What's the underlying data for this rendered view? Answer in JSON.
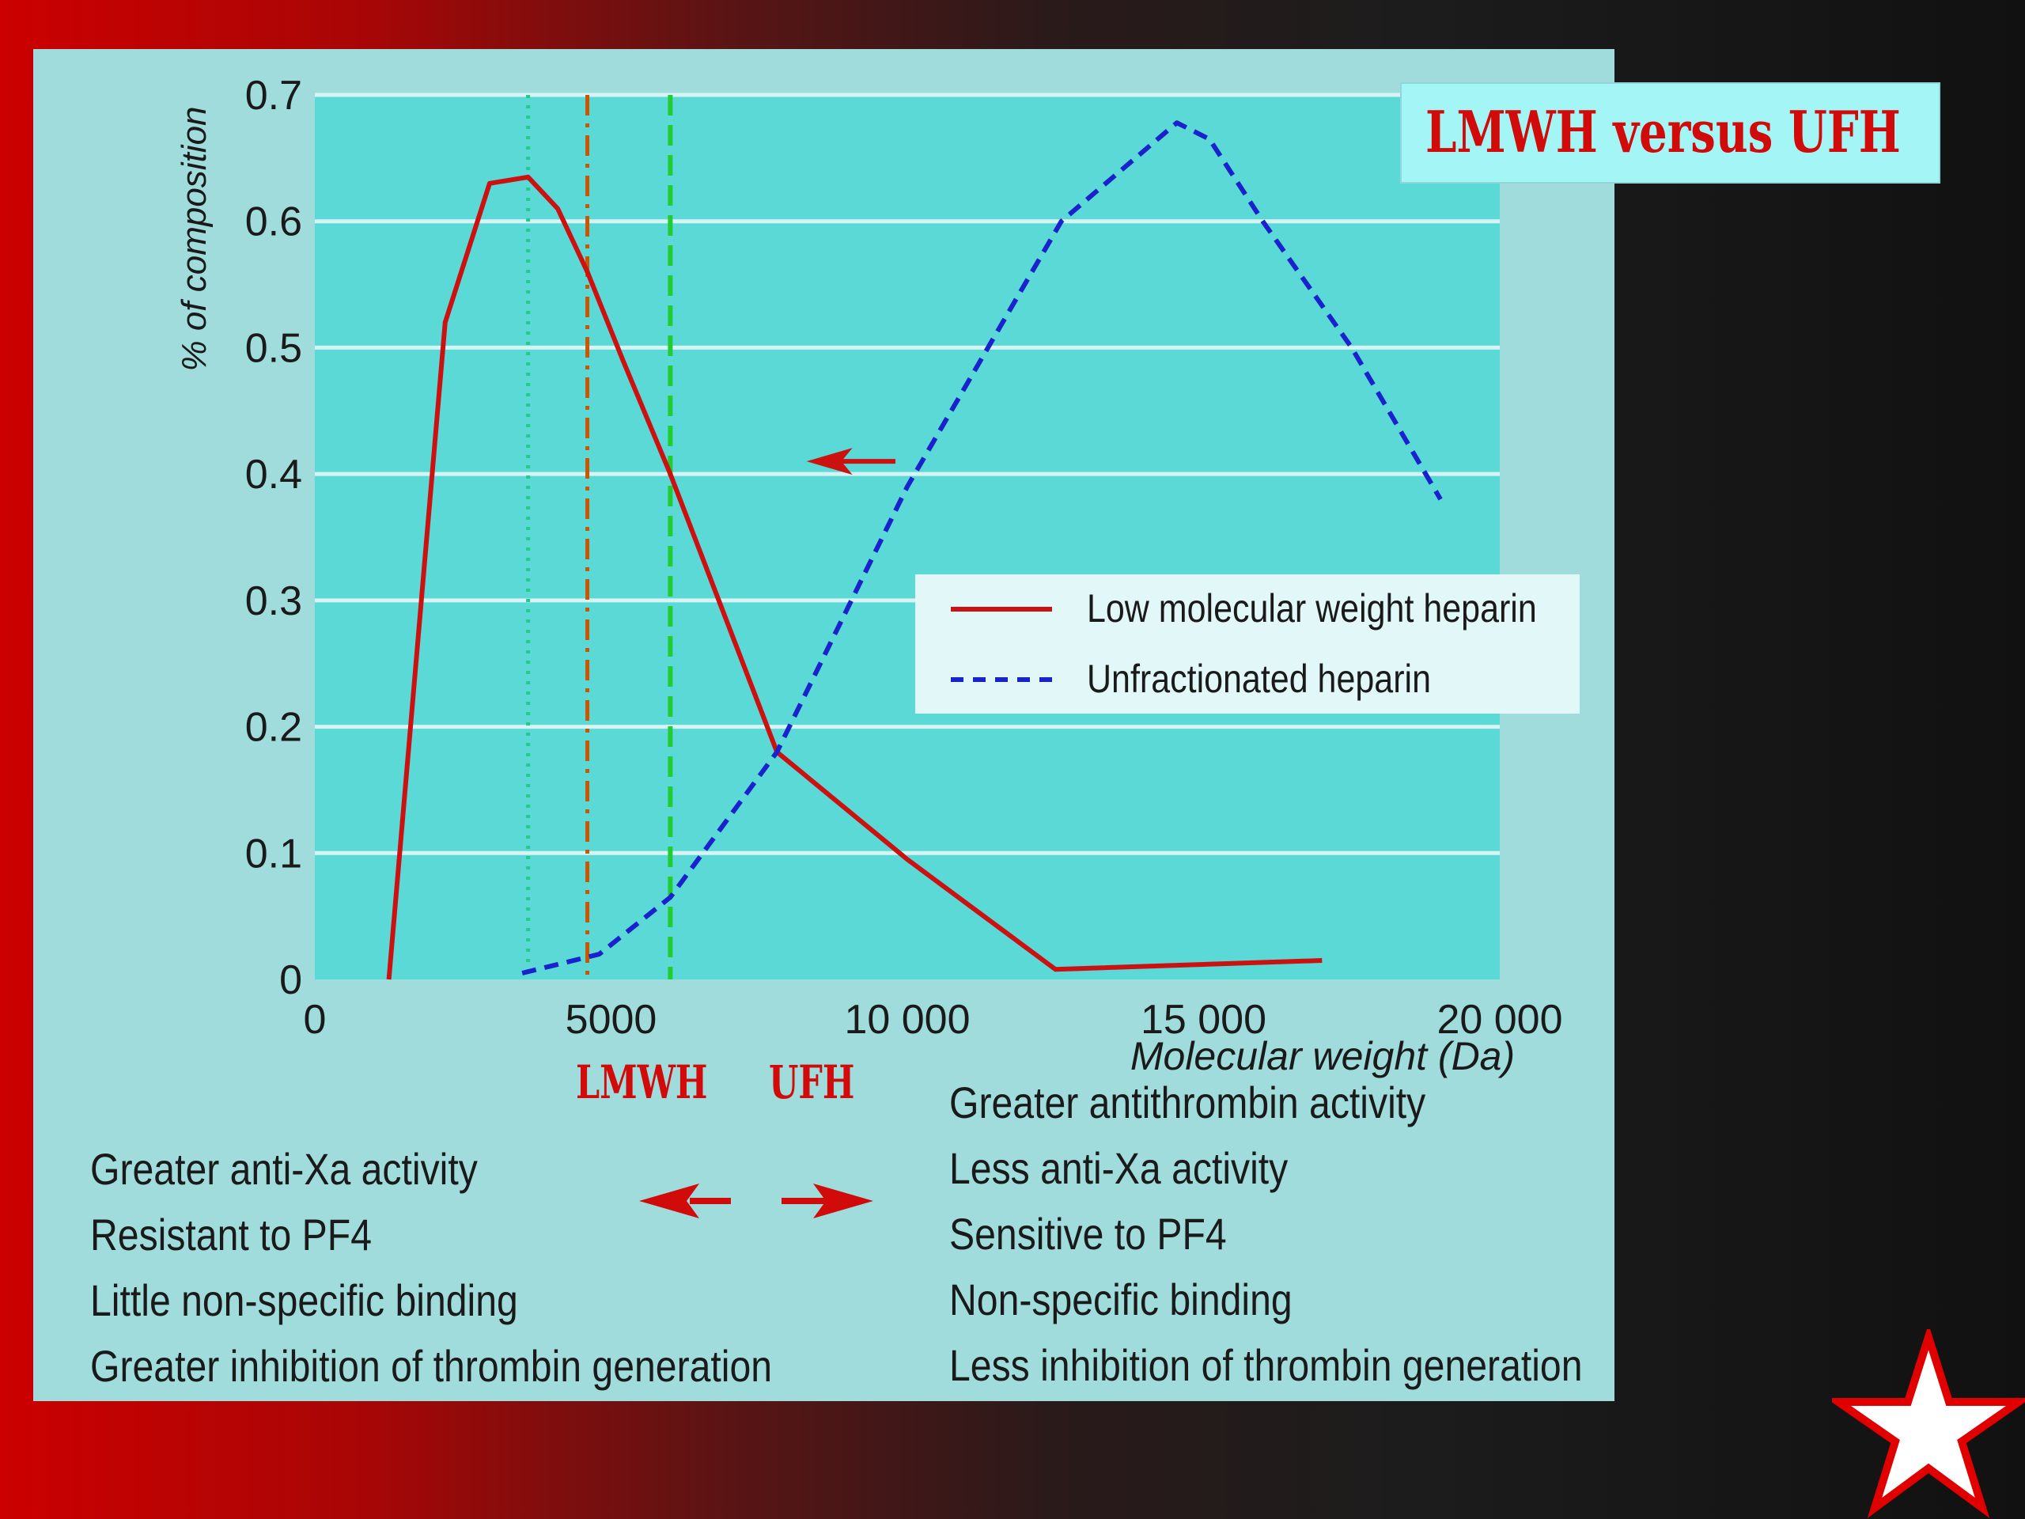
{
  "title": "LMWH versus UFH",
  "colors": {
    "lmwh": "#cc1111",
    "ufh": "#1a22cc",
    "marker_dotted": "#22cc88",
    "marker_dashdot": "#cc5500",
    "marker_dashed": "#22cc33",
    "plot_bg": "#5ad9d6",
    "panel_bg": "#a0dcdb",
    "accent_red": "#d10a0a"
  },
  "chart_data": {
    "type": "line",
    "xlabel": "Molecular weight (Da)",
    "ylabel": "% of composition",
    "xlim": [
      0,
      20000
    ],
    "ylim": [
      0,
      0.7
    ],
    "x_ticks": [
      "0",
      "5000",
      "10 000",
      "15 000",
      "20 000"
    ],
    "x_tick_values": [
      0,
      5000,
      10000,
      15000,
      20000
    ],
    "y_ticks": [
      "0",
      "0.1",
      "0.2",
      "0.3",
      "0.4",
      "0.5",
      "0.6",
      "0.7"
    ],
    "y_tick_values": [
      0,
      0.1,
      0.2,
      0.3,
      0.4,
      0.5,
      0.6,
      0.7
    ],
    "grid": "horizontal",
    "legend_position": "right-middle",
    "series": [
      {
        "name": "Low molecular weight heparin",
        "style": "solid",
        "x": [
          1250,
          2200,
          2950,
          3600,
          4100,
          4600,
          5200,
          6000,
          7800,
          10000,
          12500,
          17000
        ],
        "y": [
          0.0,
          0.52,
          0.63,
          0.635,
          0.61,
          0.56,
          0.49,
          0.4,
          0.18,
          0.095,
          0.008,
          0.015
        ]
      },
      {
        "name": "Unfractionated heparin",
        "style": "dashed",
        "x": [
          3500,
          4800,
          6000,
          7800,
          10000,
          12600,
          14550,
          15100,
          16000,
          17500,
          19000
        ],
        "y": [
          0.005,
          0.02,
          0.065,
          0.18,
          0.39,
          0.6,
          0.678,
          0.665,
          0.6,
          0.5,
          0.38
        ]
      }
    ],
    "reference_lines": [
      {
        "x": 3600,
        "style": "dotted"
      },
      {
        "x": 4600,
        "style": "dash-dot"
      },
      {
        "x": 6000,
        "style": "dashed"
      }
    ],
    "annotations": [
      {
        "type": "arrow",
        "direction": "left",
        "x_from": 9800,
        "x_to": 8300,
        "y": 0.41
      }
    ]
  },
  "labels": {
    "lmwh": "LMWH",
    "ufh": "UFH"
  },
  "lmwh_properties": [
    "Greater anti-Xa activity",
    "Resistant to PF4",
    "Little non-specific binding",
    "Greater inhibition of thrombin generation"
  ],
  "ufh_properties": [
    "Greater antithrombin activity",
    "Less anti-Xa activity",
    "Sensitive to PF4",
    "Non-specific binding",
    "Less inhibition of thrombin generation"
  ],
  "icons": {
    "left_arrow": "left-arrow-icon",
    "right_arrow": "right-arrow-icon",
    "star": "star-icon"
  }
}
